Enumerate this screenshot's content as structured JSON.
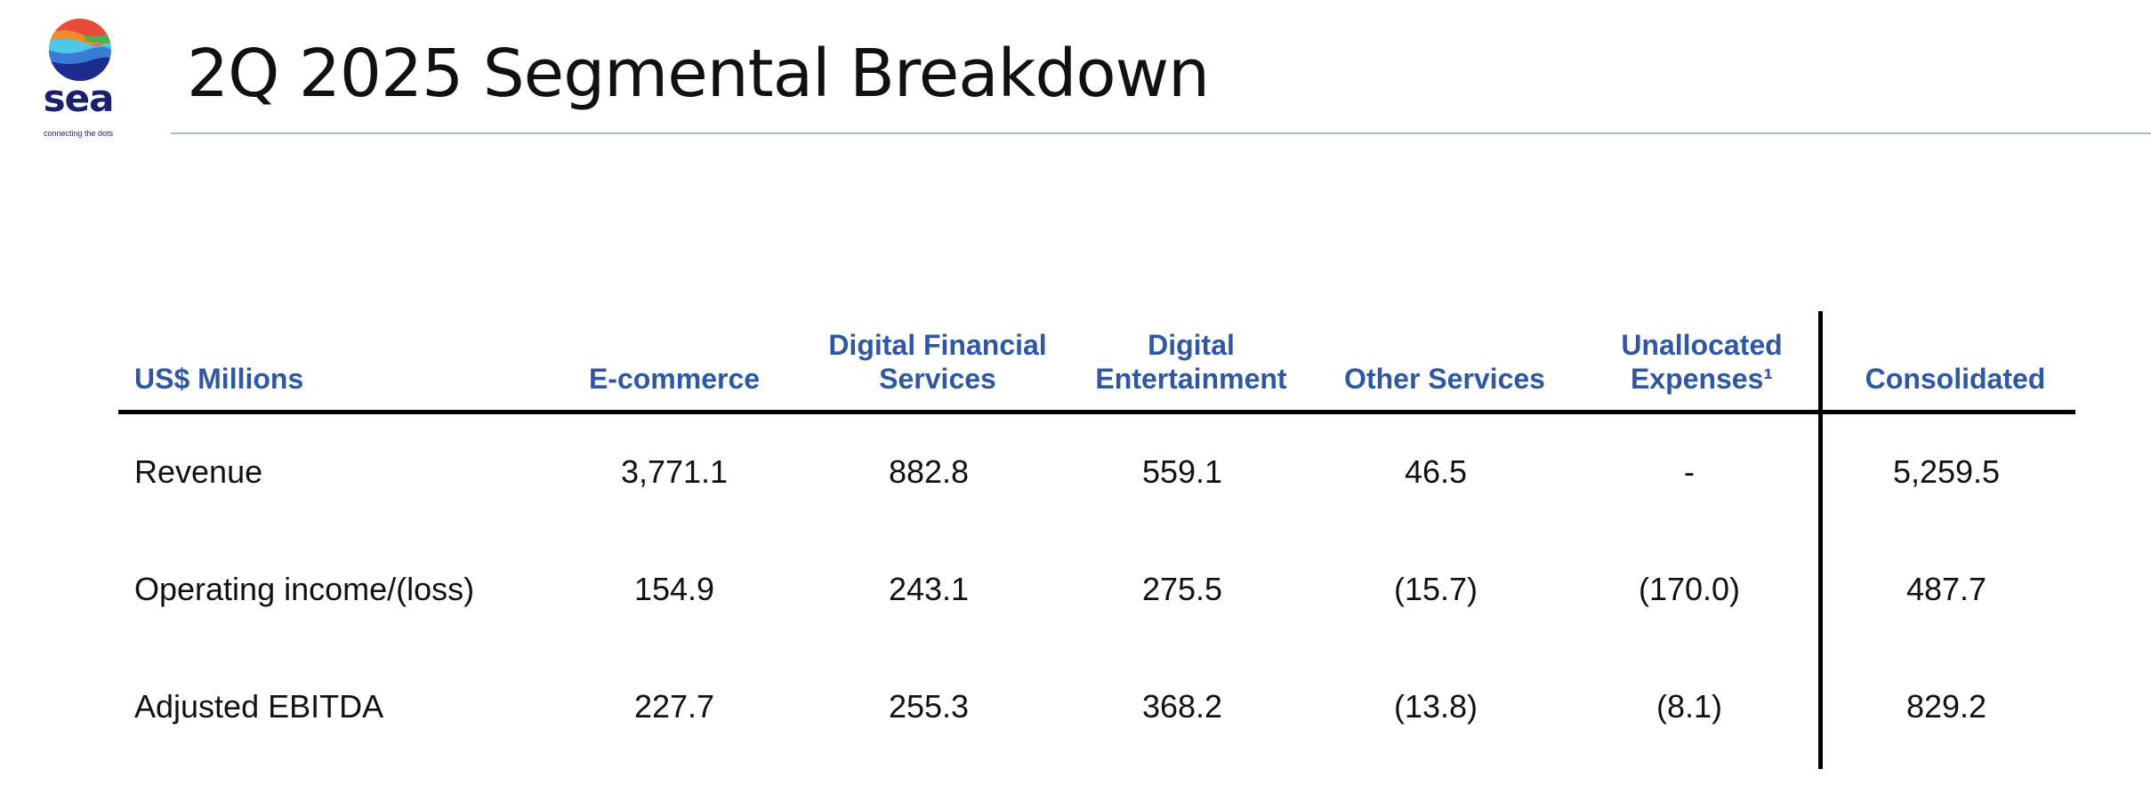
{
  "logo": {
    "wordmark": "sea",
    "tagline": "connecting the dots"
  },
  "title": "2Q 2025 Segmental Breakdown",
  "table": {
    "columns": [
      {
        "line1": "US$ Millions",
        "line2": ""
      },
      {
        "line1": "E-commerce",
        "line2": ""
      },
      {
        "line1": "Digital Financial",
        "line2": "Services"
      },
      {
        "line1": "Digital",
        "line2": "Entertainment"
      },
      {
        "line1": "Other Services",
        "line2": ""
      },
      {
        "line1": "Unallocated",
        "line2": "Expenses¹"
      },
      {
        "line1": "Consolidated",
        "line2": ""
      }
    ],
    "rows": [
      {
        "label": "Revenue",
        "values": [
          "3,771.1",
          "882.8",
          "559.1",
          "46.5",
          "-",
          "5,259.5"
        ]
      },
      {
        "label": "Operating income/(loss)",
        "values": [
          "154.9",
          "243.1",
          "275.5",
          "(15.7)",
          "(170.0)",
          "487.7"
        ]
      },
      {
        "label": "Adjusted EBITDA",
        "values": [
          "227.7",
          "255.3",
          "368.2",
          "(13.8)",
          "(8.1)",
          "829.2"
        ]
      }
    ]
  },
  "colors": {
    "header_text": "#2f57a4",
    "body_text": "#111111",
    "rule": "#000000",
    "title_rule": "#a9b8d6",
    "logo_navy": "#1c1f6d"
  }
}
